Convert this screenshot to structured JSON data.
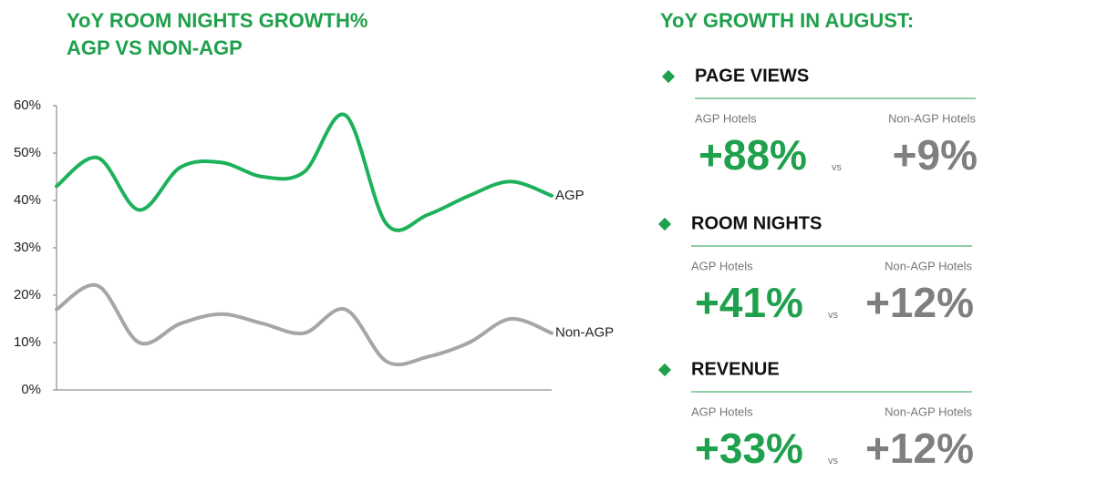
{
  "chart_data": {
    "type": "line",
    "title_lines": [
      "YoY ROOM NIGHTS GROWTH%",
      "AGP VS NON-AGP"
    ],
    "categories": [
      null,
      null,
      null,
      null,
      null,
      null,
      null,
      null,
      null,
      null,
      null,
      null,
      null
    ],
    "series": [
      {
        "name": "AGP",
        "color": "#1db15a",
        "values": [
          43,
          49,
          38,
          47,
          48,
          45,
          46,
          58,
          35,
          37,
          41,
          44,
          41
        ]
      },
      {
        "name": "Non-AGP",
        "color": "#a6a6a6",
        "values": [
          17,
          22,
          10,
          14,
          16,
          14,
          12,
          17,
          6,
          7,
          10,
          15,
          12
        ]
      }
    ],
    "ylim": [
      0,
      60
    ],
    "yticks": [
      {
        "value": 0,
        "label": "0%"
      },
      {
        "value": 10,
        "label": "10%"
      },
      {
        "value": 20,
        "label": "20%"
      },
      {
        "value": 30,
        "label": "30%"
      },
      {
        "value": 40,
        "label": "40%"
      },
      {
        "value": 50,
        "label": "50%"
      },
      {
        "value": 60,
        "label": "60%"
      }
    ],
    "grid": false
  },
  "stats": {
    "title": "YoY GROWTH IN AUGUST:",
    "sections": [
      {
        "heading": "PAGE VIEWS",
        "left_label": "AGP Hotels",
        "right_label": "Non-AGP Hotels",
        "left_value": "+88%",
        "vs": "vs",
        "right_value": "+9%"
      },
      {
        "heading": "ROOM NIGHTS",
        "left_label": "AGP Hotels",
        "right_label": "Non-AGP Hotels",
        "left_value": "+41%",
        "vs": "vs",
        "right_value": "+12%"
      },
      {
        "heading": "REVENUE",
        "left_label": "AGP Hotels",
        "right_label": "Non-AGP Hotels",
        "left_value": "+33%",
        "vs": "vs",
        "right_value": "+12%"
      }
    ]
  }
}
